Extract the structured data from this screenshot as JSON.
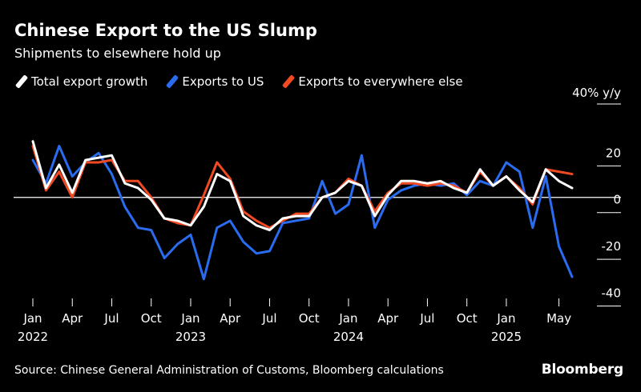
{
  "title": "Chinese Export to the US Slump",
  "subtitle": "Shipments to elsewhere hold up",
  "source": "Source: Chinese General Administration of Customs, Bloomberg calculations",
  "brand": "Bloomberg",
  "chart_data": {
    "type": "line",
    "unit_label": "40% y/y",
    "ylim": [
      -46,
      40
    ],
    "yticks": [
      -40,
      -20,
      0,
      20
    ],
    "zero_line": true,
    "axis_side": "right",
    "x_tick_labels": [
      {
        "index": 0,
        "label": "Jan",
        "sub": "2022"
      },
      {
        "index": 3,
        "label": "Apr",
        "sub": ""
      },
      {
        "index": 6,
        "label": "Jul",
        "sub": ""
      },
      {
        "index": 9,
        "label": "Oct",
        "sub": ""
      },
      {
        "index": 12,
        "label": "Jan",
        "sub": "2023"
      },
      {
        "index": 15,
        "label": "Apr",
        "sub": ""
      },
      {
        "index": 18,
        "label": "Jul",
        "sub": ""
      },
      {
        "index": 21,
        "label": "Oct",
        "sub": ""
      },
      {
        "index": 24,
        "label": "Jan",
        "sub": "2024"
      },
      {
        "index": 27,
        "label": "Apr",
        "sub": ""
      },
      {
        "index": 30,
        "label": "Jul",
        "sub": ""
      },
      {
        "index": 33,
        "label": "Oct",
        "sub": ""
      },
      {
        "index": 36,
        "label": "Jan",
        "sub": "2025"
      },
      {
        "index": 40,
        "label": "May",
        "sub": ""
      }
    ],
    "series": [
      {
        "name": "Exports to US",
        "color": "#2a6cf0",
        "values": [
          16,
          6,
          22,
          9,
          15,
          19,
          10,
          -4,
          -13,
          -14,
          -26,
          -20,
          -16,
          -35,
          -13,
          -10,
          -19,
          -24,
          -23,
          -11,
          -10,
          -9,
          7,
          -7,
          -3,
          18,
          -13,
          -1,
          3,
          5,
          6,
          5,
          6,
          1,
          7,
          5,
          15,
          11,
          -13,
          9,
          -21,
          -34
        ]
      },
      {
        "name": "Exports to everywhere else",
        "color": "#f04a23",
        "values": [
          22,
          3,
          11,
          0,
          15,
          15,
          16,
          7,
          7,
          0,
          -9,
          -11,
          -12,
          1,
          15,
          8,
          -6,
          -10,
          -13,
          -10,
          -7,
          -7,
          0,
          2,
          8,
          5,
          -6,
          2,
          6,
          6,
          5,
          6,
          5,
          2,
          11,
          5,
          9,
          4,
          -3,
          12,
          11,
          10
        ]
      },
      {
        "name": "Total export growth",
        "color": "#ffffff",
        "values": [
          24,
          4,
          14,
          2,
          16,
          17,
          18,
          6,
          4,
          -1,
          -9,
          -10,
          -12,
          -4,
          10,
          7,
          -8,
          -12,
          -14,
          -9,
          -8,
          -8,
          0,
          2,
          7,
          5,
          -8,
          1,
          7,
          7,
          6,
          7,
          4,
          2,
          12,
          5,
          9,
          3,
          -2,
          12,
          7,
          4
        ]
      }
    ]
  },
  "legend_order": [
    "Total export growth",
    "Exports to US",
    "Exports to everywhere else"
  ]
}
